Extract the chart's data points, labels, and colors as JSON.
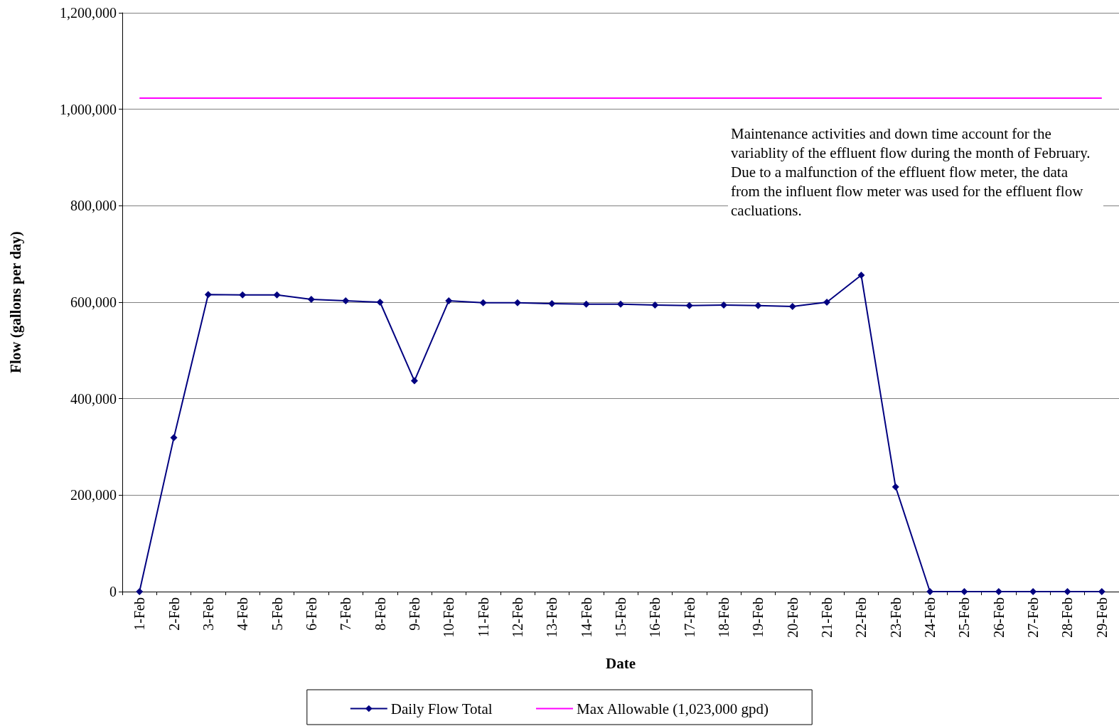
{
  "chart_data": {
    "type": "line",
    "xlabel": "Date",
    "ylabel": "Flow (gallons per day)",
    "categories": [
      "1-Feb",
      "2-Feb",
      "3-Feb",
      "4-Feb",
      "5-Feb",
      "6-Feb",
      "7-Feb",
      "8-Feb",
      "9-Feb",
      "10-Feb",
      "11-Feb",
      "12-Feb",
      "13-Feb",
      "14-Feb",
      "15-Feb",
      "16-Feb",
      "17-Feb",
      "18-Feb",
      "19-Feb",
      "20-Feb",
      "21-Feb",
      "22-Feb",
      "23-Feb",
      "24-Feb",
      "25-Feb",
      "26-Feb",
      "27-Feb",
      "28-Feb",
      "29-Feb"
    ],
    "series": [
      {
        "name": "Daily Flow Total",
        "color": "#000080",
        "marker": "diamond",
        "values": [
          0,
          319000,
          616000,
          615000,
          615000,
          606000,
          603000,
          600000,
          437000,
          603000,
          599000,
          599000,
          597000,
          596000,
          596000,
          594000,
          593000,
          594000,
          593000,
          591000,
          600000,
          656000,
          217000,
          0,
          0,
          0,
          0,
          0,
          0
        ]
      },
      {
        "name": "Max Allowable (1,023,000 gpd)",
        "color": "#ff00ff",
        "marker": "none",
        "values": [
          1023000,
          1023000,
          1023000,
          1023000,
          1023000,
          1023000,
          1023000,
          1023000,
          1023000,
          1023000,
          1023000,
          1023000,
          1023000,
          1023000,
          1023000,
          1023000,
          1023000,
          1023000,
          1023000,
          1023000,
          1023000,
          1023000,
          1023000,
          1023000,
          1023000,
          1023000,
          1023000,
          1023000,
          1023000
        ]
      }
    ],
    "ylim": [
      0,
      1200000
    ],
    "yticks": [
      0,
      {
        "value": 200000,
        "label": "200,000"
      },
      {
        "value": 400000,
        "label": "400,000"
      },
      {
        "value": 600000,
        "label": "600,000"
      },
      {
        "value": 800000,
        "label": "800,000"
      },
      {
        "value": 1000000,
        "label": "1,000,000"
      },
      {
        "value": 1200000,
        "label": "1,200,000"
      }
    ],
    "grid": "y",
    "legend": "bottom",
    "line_style": "solid",
    "annotations": [
      "Maintenance activities and down time account for the variablity of the effluent flow during the month of February.  Due to a malfunction of the effluent flow meter, the data from the influent flow meter was used for the effluent flow cacluations."
    ]
  }
}
